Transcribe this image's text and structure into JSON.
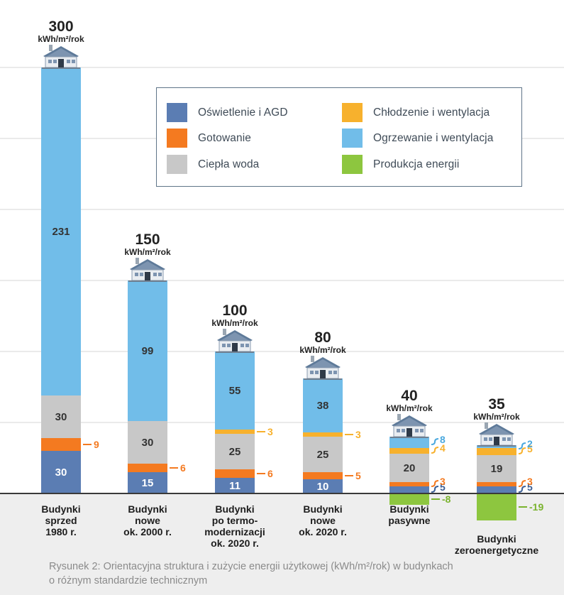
{
  "colors": {
    "lighting": "#5b7db3",
    "cooking": "#f47a20",
    "hot_water": "#c8c8c8",
    "cooling": "#f7b12d",
    "heating": "#71bde9",
    "production": "#8dc63f",
    "grid": "#d4d4d4",
    "baseline": "#3a3a3a",
    "footer_bg": "#eeeeee",
    "text": "#1d1d1d"
  },
  "legend": [
    {
      "key": "lighting",
      "label": "Oświetlenie i AGD"
    },
    {
      "key": "cooling",
      "label": "Chłodzenie i wentylacja"
    },
    {
      "key": "cooking",
      "label": "Gotowanie"
    },
    {
      "key": "heating",
      "label": "Ogrzewanie i wentylacja"
    },
    {
      "key": "hot_water",
      "label": "Ciepła woda"
    },
    {
      "key": "production",
      "label": "Produkcja energii"
    }
  ],
  "caption": {
    "line1": "Rysunek 2: Orientacyjna struktura i zużycie energii użytkowej (kWh/m²/rok) w budynkach",
    "line2": "o różnym standardzie technicznym"
  },
  "chart_data": {
    "type": "bar",
    "stacked": true,
    "unit": "kWh/m²/rok",
    "ylim": [
      -20,
      300
    ],
    "grid": true,
    "legend_position": "top-right",
    "categories": [
      [
        "Budynki",
        "sprzed",
        "1980 r."
      ],
      [
        "Budynki",
        "nowe",
        "ok. 2000 r."
      ],
      [
        "Budynki",
        "po termo-",
        "modernizacji",
        "ok. 2020 r."
      ],
      [
        "Budynki",
        "nowe",
        "ok. 2020 r."
      ],
      [
        "Budynki",
        "pasywne"
      ],
      [
        "Budynki",
        "zeroenergetyczne"
      ]
    ],
    "totals": [
      "300",
      "150",
      "100",
      "80",
      "40",
      "35"
    ],
    "series": [
      {
        "key": "lighting",
        "values": [
          30,
          15,
          11,
          10,
          5,
          5
        ]
      },
      {
        "key": "cooking",
        "values": [
          9,
          6,
          6,
          5,
          3,
          3
        ]
      },
      {
        "key": "hot_water",
        "values": [
          30,
          30,
          25,
          25,
          20,
          19
        ]
      },
      {
        "key": "cooling",
        "values": [
          0,
          0,
          3,
          3,
          4,
          5
        ]
      },
      {
        "key": "heating",
        "values": [
          231,
          99,
          55,
          38,
          8,
          2
        ]
      },
      {
        "key": "production",
        "values": [
          0,
          0,
          0,
          0,
          -8,
          -19
        ]
      }
    ]
  }
}
